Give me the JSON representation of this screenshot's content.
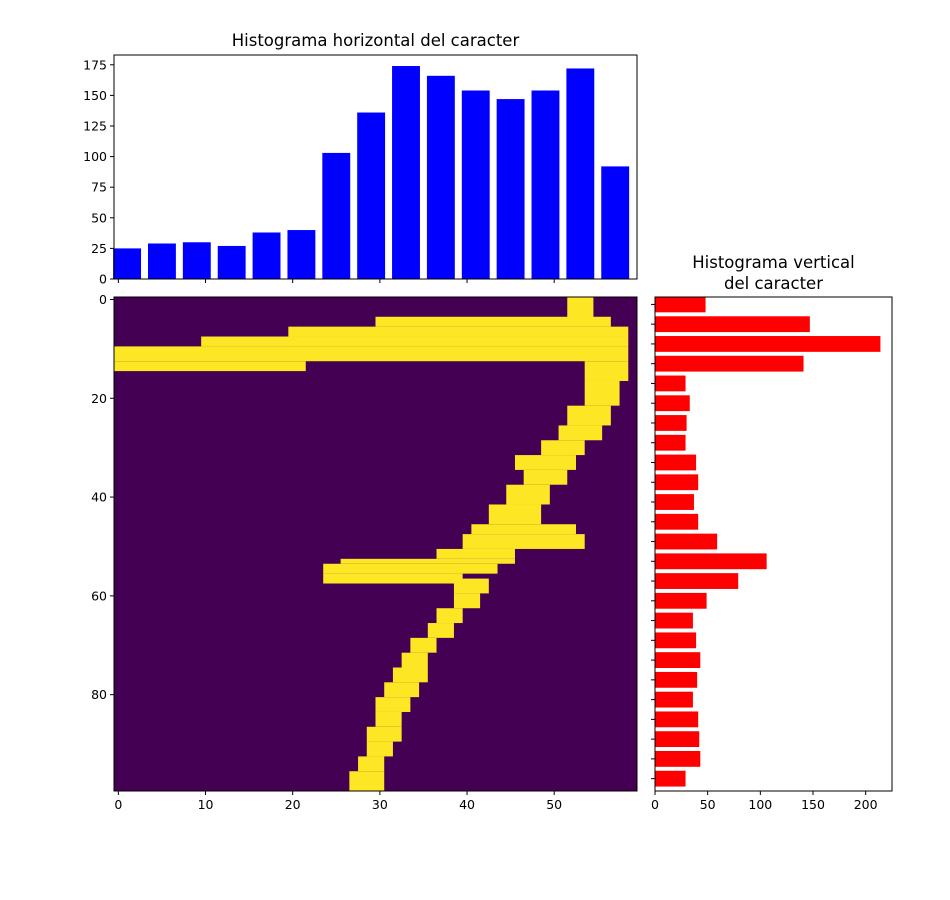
{
  "chart_data": [
    {
      "type": "bar",
      "title": "Histograma horizontal del caracter",
      "xlabel": "",
      "ylabel": "",
      "bar_color": "#0000ff",
      "x": [
        1,
        5,
        9,
        13,
        17,
        21,
        25,
        29,
        33,
        37,
        41,
        45,
        49,
        53,
        57
      ],
      "values": [
        25,
        29,
        30,
        27,
        38,
        40,
        103,
        136,
        174,
        166,
        154,
        147,
        154,
        172,
        92
      ],
      "xlim": [
        -0.5,
        59.5
      ],
      "ylim": [
        0,
        183
      ],
      "y_ticks": [
        0,
        25,
        50,
        75,
        100,
        125,
        150,
        175
      ],
      "x_ticks": [
        0,
        10,
        20,
        30,
        40,
        50
      ],
      "x_tick_labels_visible": false,
      "grid": false
    },
    {
      "type": "heatmap",
      "title": "",
      "colormap": "viridis",
      "background_color": "#440154",
      "stroke_color": "#fde725",
      "shape": [
        100,
        60
      ],
      "x_ticks": [
        0,
        10,
        20,
        30,
        40,
        50
      ],
      "y_ticks": [
        0,
        20,
        40,
        60,
        80
      ],
      "stroke_cells": [
        [
          52,
          0,
          55,
          5
        ],
        [
          30,
          4,
          57,
          6
        ],
        [
          20,
          6,
          59,
          8
        ],
        [
          10,
          8,
          59,
          10
        ],
        [
          0,
          10,
          59,
          13
        ],
        [
          0,
          13,
          22,
          15
        ],
        [
          54,
          13,
          59,
          17
        ],
        [
          54,
          17,
          58,
          22
        ],
        [
          52,
          22,
          57,
          26
        ],
        [
          51,
          26,
          56,
          29
        ],
        [
          49,
          29,
          54,
          32
        ],
        [
          46,
          32,
          53,
          35
        ],
        [
          47,
          35,
          52,
          38
        ],
        [
          45,
          38,
          50,
          42
        ],
        [
          43,
          42,
          49,
          46
        ],
        [
          41,
          46,
          53,
          48
        ],
        [
          40,
          48,
          54,
          51
        ],
        [
          37,
          51,
          46,
          53
        ],
        [
          26,
          53,
          46,
          54
        ],
        [
          24,
          54,
          44,
          56
        ],
        [
          24,
          56,
          40,
          58
        ],
        [
          39,
          57,
          43,
          60
        ],
        [
          39,
          60,
          42,
          63
        ],
        [
          37,
          63,
          40,
          66
        ],
        [
          36,
          66,
          39,
          69
        ],
        [
          34,
          69,
          37,
          72
        ],
        [
          33,
          72,
          36,
          75
        ],
        [
          32,
          75,
          36,
          78
        ],
        [
          31,
          78,
          35,
          81
        ],
        [
          30,
          81,
          34,
          84
        ],
        [
          30,
          84,
          33,
          87
        ],
        [
          29,
          87,
          33,
          90
        ],
        [
          29,
          90,
          32,
          93
        ],
        [
          28,
          93,
          31,
          96
        ],
        [
          27,
          96,
          31,
          100
        ]
      ]
    },
    {
      "type": "bar",
      "orientation": "horizontal",
      "title": "Histograma vertical del caracter",
      "title_lines": [
        "Histograma vertical",
        "del caracter"
      ],
      "xlabel": "",
      "ylabel": "",
      "bar_color": "#ff0000",
      "y": [
        1,
        5,
        9,
        13,
        17,
        21,
        25,
        29,
        33,
        37,
        41,
        45,
        49,
        53,
        57,
        61,
        65,
        69,
        73,
        77,
        81,
        85,
        89,
        93,
        97
      ],
      "values": [
        48,
        147,
        214,
        141,
        29,
        33,
        30,
        29,
        39,
        41,
        37,
        41,
        59,
        106,
        79,
        49,
        36,
        39,
        43,
        40,
        36,
        41,
        42,
        43,
        29
      ],
      "xlim": [
        0,
        225
      ],
      "x_ticks": [
        0,
        50,
        100,
        150,
        200
      ],
      "ylim": [
        99.5,
        -0.5
      ],
      "y_tick_labels_visible": false,
      "grid": false
    }
  ]
}
